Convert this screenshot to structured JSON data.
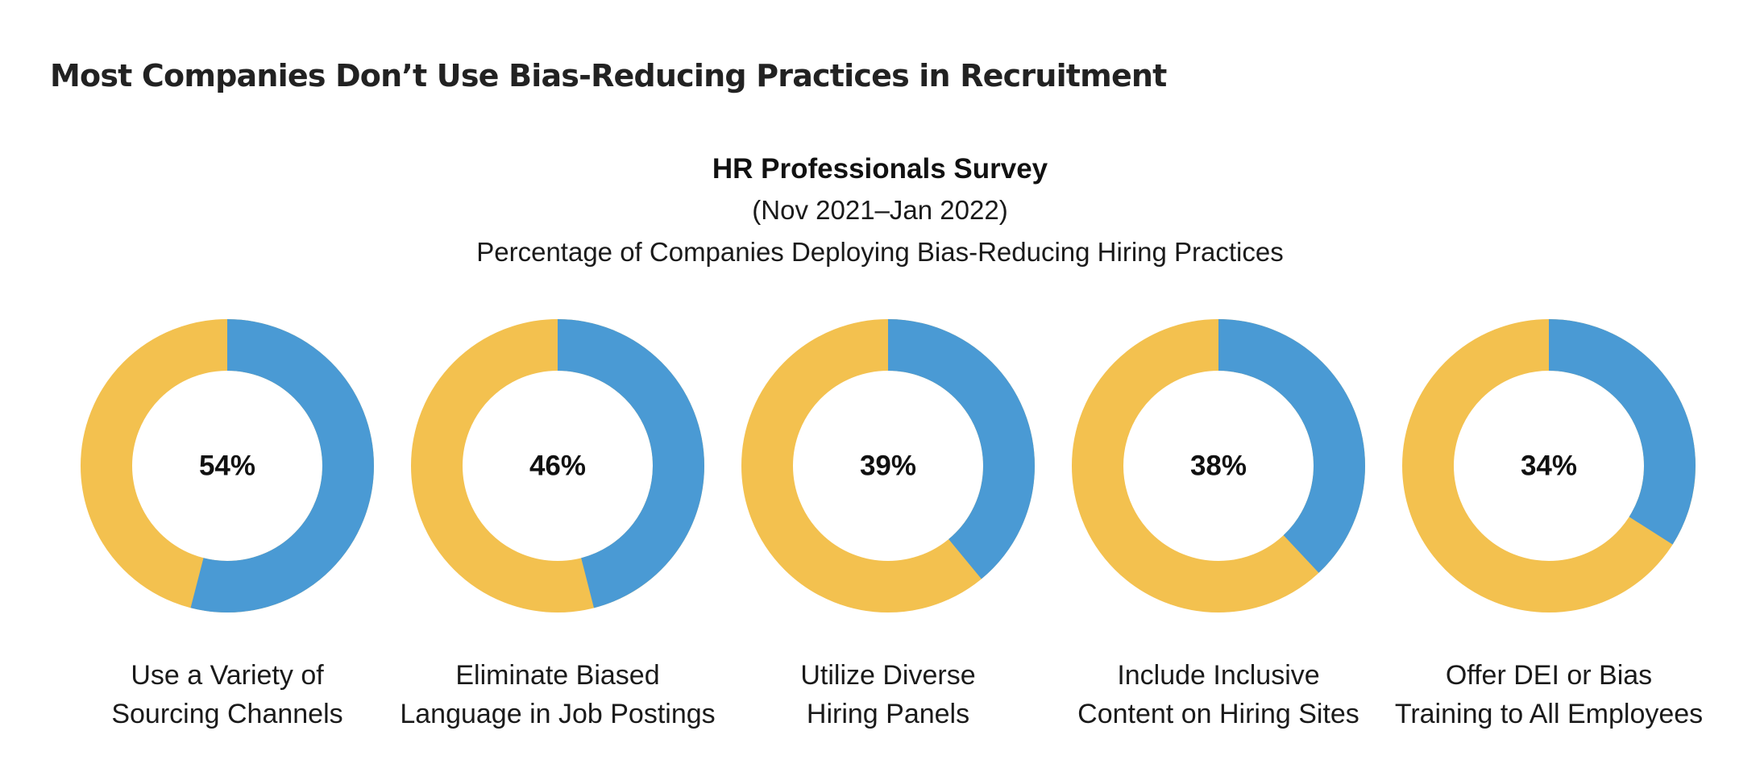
{
  "page": {
    "title": "Most Companies Don’t Use Bias-Reducing Practices in Recruitment"
  },
  "chart_data": {
    "type": "pie",
    "variant": "donut",
    "title": "HR Professionals Survey",
    "subtitle": "(Nov 2021–Jan 2022)",
    "caption": "Percentage of Companies Deploying Bias-Reducing Hiring Practices",
    "categories": [
      {
        "label_lines": [
          "Use a Variety of",
          "Sourcing Channels"
        ],
        "value": 54,
        "display": "54%"
      },
      {
        "label_lines": [
          "Eliminate Biased",
          "Language in Job Postings"
        ],
        "value": 46,
        "display": "46%"
      },
      {
        "label_lines": [
          "Utilize Diverse",
          "Hiring Panels"
        ],
        "value": 39,
        "display": "39%"
      },
      {
        "label_lines": [
          "Include Inclusive",
          "Content on Hiring Sites"
        ],
        "value": 38,
        "display": "38%"
      },
      {
        "label_lines": [
          "Offer DEI or Bias",
          "Training to All Employees"
        ],
        "value": 34,
        "display": "34%"
      }
    ],
    "colors": {
      "deploying": "#4a9ad4",
      "remainder": "#f3c14f"
    }
  }
}
